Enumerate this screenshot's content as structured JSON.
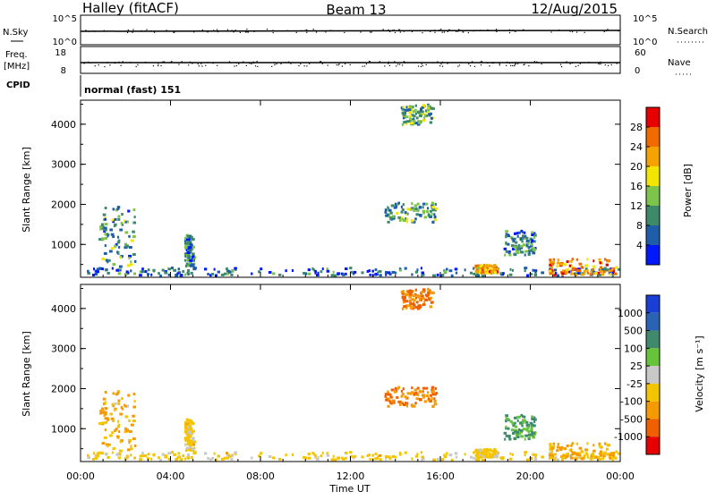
{
  "header": {
    "station": "Halley (fitACF)",
    "beam": "Beam 13",
    "date": "12/Aug/2015"
  },
  "noise_panel": {
    "left_label": "N.Sky",
    "right_label": "N.Search",
    "left_ticks": [
      "10^5",
      "10^0"
    ],
    "right_ticks": [
      "10^5",
      "10^0"
    ]
  },
  "freq_panel": {
    "left_label_line1": "Freq.",
    "left_label_line2": "[MHz]",
    "right_label": "Nave",
    "left_ticks": [
      "18",
      "8"
    ],
    "right_ticks": [
      "60",
      "0"
    ]
  },
  "cpid_panel": {
    "label": "CPID",
    "text": "normal (fast) 151"
  },
  "x_axis": {
    "ticks": [
      "00:00",
      "04:00",
      "08:00",
      "12:00",
      "16:00",
      "20:00",
      "00:00"
    ],
    "label": "Time UT"
  },
  "power_panel": {
    "ylabel": "Slant Range [km]",
    "yticks": [
      "1000",
      "2000",
      "3000",
      "4000"
    ],
    "colorbar_label": "Power [dB]",
    "colorbar_ticks": [
      "4",
      "8",
      "12",
      "16",
      "20",
      "24",
      "28"
    ],
    "colors": [
      "#0018ff",
      "#1e5ea8",
      "#3d8a6b",
      "#7dc44a",
      "#f2e600",
      "#f5a300",
      "#f06a00",
      "#e80000"
    ]
  },
  "velocity_panel": {
    "ylabel": "Slant Range [km]",
    "yticks": [
      "1000",
      "2000",
      "3000",
      "4000"
    ],
    "colorbar_label": "Velocity [m s⁻¹]",
    "colorbar_ticks": [
      "1000",
      "500",
      "100",
      "25",
      "-25",
      "-100",
      "-500",
      "-1000"
    ],
    "colors": [
      "#1a3fd6",
      "#2a63b5",
      "#3f8a6c",
      "#66c43a",
      "#c8c8c8",
      "#f5c400",
      "#f59a00",
      "#f06000",
      "#e80000"
    ]
  },
  "chart_data": [
    {
      "type": "line",
      "title": "N.Sky / N.Search",
      "x_range": [
        "00:00",
        "24:00"
      ],
      "ylim_left": [
        1,
        100000
      ],
      "ylim_right": [
        1,
        100000
      ],
      "series": [
        {
          "name": "N.Sky",
          "approx_value": 10000
        }
      ]
    },
    {
      "type": "line",
      "title": "Freq. / Nave",
      "x_range": [
        "00:00",
        "24:00"
      ],
      "ylim_left": [
        8,
        18
      ],
      "ylim_right": [
        0,
        60
      ],
      "series": [
        {
          "name": "Freq. [MHz]",
          "approx_value": 12
        }
      ]
    },
    {
      "type": "heatmap",
      "title": "Power [dB]",
      "x_range_hours": [
        0,
        24
      ],
      "ylim_km": [
        180,
        4600
      ],
      "color_range": [
        0,
        32
      ],
      "features": [
        {
          "t": [
            0.0,
            24.0
          ],
          "range_km": [
            180,
            380
          ],
          "value": 6
        },
        {
          "t": [
            0.8,
            2.4
          ],
          "range_km": [
            400,
            1900
          ],
          "value": 10
        },
        {
          "t": [
            4.6,
            5.0
          ],
          "range_km": [
            350,
            1200
          ],
          "value": 8
        },
        {
          "t": [
            14.2,
            15.6
          ],
          "range_km": [
            3950,
            4450
          ],
          "value": 12
        },
        {
          "t": [
            13.5,
            15.8
          ],
          "range_km": [
            1500,
            2000
          ],
          "value": 11
        },
        {
          "t": [
            17.5,
            18.5
          ],
          "range_km": [
            250,
            450
          ],
          "value": 22
        },
        {
          "t": [
            18.8,
            20.2
          ],
          "range_km": [
            700,
            1300
          ],
          "value": 9
        },
        {
          "t": [
            20.8,
            23.8
          ],
          "range_km": [
            200,
            600
          ],
          "value": 24
        }
      ]
    },
    {
      "type": "heatmap",
      "title": "Velocity [m s-1]",
      "x_range_hours": [
        0,
        24
      ],
      "ylim_km": [
        180,
        4600
      ],
      "color_range": [
        -1000,
        1000
      ],
      "features": [
        {
          "t": [
            0.0,
            24.0
          ],
          "range_km": [
            180,
            380
          ],
          "value": -50
        },
        {
          "t": [
            0.8,
            2.4
          ],
          "range_km": [
            400,
            1900
          ],
          "value": -100
        },
        {
          "t": [
            14.2,
            15.6
          ],
          "range_km": [
            3950,
            4450
          ],
          "value": -500
        },
        {
          "t": [
            13.5,
            15.8
          ],
          "range_km": [
            1500,
            2000
          ],
          "value": -500
        },
        {
          "t": [
            18.8,
            20.2
          ],
          "range_km": [
            700,
            1300
          ],
          "value": 100
        },
        {
          "t": [
            20.8,
            23.8
          ],
          "range_km": [
            200,
            600
          ],
          "value": -100
        }
      ]
    }
  ]
}
